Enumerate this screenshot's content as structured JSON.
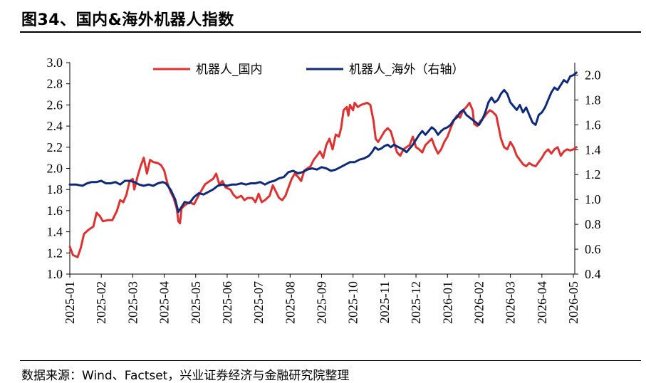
{
  "title": "图34、国内&海外机器人指数",
  "source": "数据来源：Wind、Factset，兴业证券经济与金融研究院整理",
  "chart_data": {
    "type": "line",
    "x_ticks": [
      "2025-01",
      "2025-02",
      "2025-03",
      "2025-04",
      "2025-05",
      "2025-06",
      "2025-07",
      "2025-08",
      "2025-09",
      "2025-10",
      "2025-11",
      "2025-12",
      "2026-01",
      "2026-02",
      "2026-03",
      "2026-04",
      "2026-05"
    ],
    "y_left": {
      "range": [
        1.0,
        3.0
      ],
      "ticks": [
        "1.0",
        "1.2",
        "1.4",
        "1.6",
        "1.8",
        "2.0",
        "2.2",
        "2.4",
        "2.6",
        "2.8",
        "3.0"
      ]
    },
    "y_right": {
      "range": [
        0.4,
        2.1
      ],
      "ticks": [
        "0.4",
        "0.6",
        "0.8",
        "1.0",
        "1.2",
        "1.4",
        "1.6",
        "1.8",
        "2.0"
      ]
    },
    "legend_position": "top",
    "series": [
      {
        "name": "机器人_国内",
        "axis": "left",
        "color": "#e03030",
        "points": [
          [
            0.0,
            1.26
          ],
          [
            0.1,
            1.18
          ],
          [
            0.25,
            1.16
          ],
          [
            0.35,
            1.25
          ],
          [
            0.45,
            1.38
          ],
          [
            0.6,
            1.42
          ],
          [
            0.75,
            1.45
          ],
          [
            0.85,
            1.58
          ],
          [
            0.95,
            1.55
          ],
          [
            1.05,
            1.5
          ],
          [
            1.2,
            1.51
          ],
          [
            1.35,
            1.51
          ],
          [
            1.5,
            1.6
          ],
          [
            1.6,
            1.7
          ],
          [
            1.7,
            1.68
          ],
          [
            1.8,
            1.75
          ],
          [
            1.9,
            1.88
          ],
          [
            2.0,
            1.9
          ],
          [
            2.05,
            1.8
          ],
          [
            2.15,
            1.92
          ],
          [
            2.25,
            2.02
          ],
          [
            2.35,
            2.1
          ],
          [
            2.45,
            1.95
          ],
          [
            2.55,
            2.08
          ],
          [
            2.65,
            2.06
          ],
          [
            2.8,
            2.05
          ],
          [
            2.9,
            2.03
          ],
          [
            3.0,
            1.98
          ],
          [
            3.1,
            1.86
          ],
          [
            3.2,
            1.78
          ],
          [
            3.3,
            1.72
          ],
          [
            3.4,
            1.62
          ],
          [
            3.45,
            1.5
          ],
          [
            3.5,
            1.48
          ],
          [
            3.55,
            1.62
          ],
          [
            3.65,
            1.65
          ],
          [
            3.8,
            1.68
          ],
          [
            3.95,
            1.66
          ],
          [
            4.05,
            1.72
          ],
          [
            4.2,
            1.8
          ],
          [
            4.3,
            1.85
          ],
          [
            4.45,
            1.88
          ],
          [
            4.55,
            1.9
          ],
          [
            4.65,
            1.95
          ],
          [
            4.75,
            1.85
          ],
          [
            4.85,
            1.88
          ],
          [
            4.95,
            1.82
          ],
          [
            5.1,
            1.8
          ],
          [
            5.2,
            1.75
          ],
          [
            5.3,
            1.72
          ],
          [
            5.45,
            1.74
          ],
          [
            5.55,
            1.7
          ],
          [
            5.65,
            1.72
          ],
          [
            5.8,
            1.72
          ],
          [
            5.9,
            1.68
          ],
          [
            6.0,
            1.76
          ],
          [
            6.1,
            1.68
          ],
          [
            6.2,
            1.7
          ],
          [
            6.35,
            1.74
          ],
          [
            6.45,
            1.84
          ],
          [
            6.55,
            1.78
          ],
          [
            6.65,
            1.72
          ],
          [
            6.75,
            1.7
          ],
          [
            6.85,
            1.74
          ],
          [
            6.95,
            1.82
          ],
          [
            7.05,
            1.9
          ],
          [
            7.15,
            1.95
          ],
          [
            7.25,
            1.92
          ],
          [
            7.35,
            1.88
          ],
          [
            7.45,
            1.98
          ],
          [
            7.55,
            2.0
          ],
          [
            7.65,
            2.02
          ],
          [
            7.75,
            2.08
          ],
          [
            7.85,
            2.12
          ],
          [
            7.95,
            2.16
          ],
          [
            8.05,
            2.1
          ],
          [
            8.15,
            2.22
          ],
          [
            8.25,
            2.28
          ],
          [
            8.35,
            2.18
          ],
          [
            8.45,
            2.32
          ],
          [
            8.55,
            2.3
          ],
          [
            8.62,
            2.38
          ],
          [
            8.7,
            2.55
          ],
          [
            8.8,
            2.58
          ],
          [
            8.85,
            2.5
          ],
          [
            8.9,
            2.6
          ],
          [
            9.0,
            2.55
          ],
          [
            9.05,
            2.62
          ],
          [
            9.15,
            2.58
          ],
          [
            9.25,
            2.6
          ],
          [
            9.35,
            2.61
          ],
          [
            9.45,
            2.62
          ],
          [
            9.55,
            2.6
          ],
          [
            9.65,
            2.45
          ],
          [
            9.72,
            2.28
          ],
          [
            9.8,
            2.25
          ],
          [
            9.9,
            2.3
          ],
          [
            10.0,
            2.35
          ],
          [
            10.1,
            2.38
          ],
          [
            10.2,
            2.35
          ],
          [
            10.3,
            2.25
          ],
          [
            10.4,
            2.15
          ],
          [
            10.5,
            2.12
          ],
          [
            10.6,
            2.18
          ],
          [
            10.7,
            2.2
          ],
          [
            10.8,
            2.22
          ],
          [
            10.9,
            2.3
          ],
          [
            11.0,
            2.2
          ],
          [
            11.1,
            2.18
          ],
          [
            11.2,
            2.15
          ],
          [
            11.3,
            2.22
          ],
          [
            11.4,
            2.25
          ],
          [
            11.5,
            2.28
          ],
          [
            11.6,
            2.2
          ],
          [
            11.7,
            2.14
          ],
          [
            11.8,
            2.18
          ],
          [
            11.9,
            2.25
          ],
          [
            12.0,
            2.3
          ],
          [
            12.1,
            2.38
          ],
          [
            12.2,
            2.45
          ],
          [
            12.3,
            2.5
          ],
          [
            12.4,
            2.48
          ],
          [
            12.5,
            2.55
          ],
          [
            12.6,
            2.58
          ],
          [
            12.7,
            2.62
          ],
          [
            12.8,
            2.55
          ],
          [
            12.85,
            2.42
          ],
          [
            12.95,
            2.4
          ],
          [
            13.05,
            2.45
          ],
          [
            13.15,
            2.48
          ],
          [
            13.25,
            2.52
          ],
          [
            13.35,
            2.55
          ],
          [
            13.45,
            2.53
          ],
          [
            13.55,
            2.5
          ],
          [
            13.62,
            2.4
          ],
          [
            13.7,
            2.28
          ],
          [
            13.8,
            2.2
          ],
          [
            13.9,
            2.18
          ],
          [
            14.0,
            2.25
          ],
          [
            14.1,
            2.2
          ],
          [
            14.2,
            2.12
          ],
          [
            14.3,
            2.08
          ],
          [
            14.4,
            2.04
          ],
          [
            14.5,
            2.02
          ],
          [
            14.6,
            2.05
          ],
          [
            14.7,
            2.03
          ],
          [
            14.8,
            2.02
          ],
          [
            14.9,
            2.06
          ],
          [
            15.0,
            2.1
          ],
          [
            15.1,
            2.15
          ],
          [
            15.2,
            2.18
          ],
          [
            15.3,
            2.14
          ],
          [
            15.4,
            2.18
          ],
          [
            15.5,
            2.2
          ],
          [
            15.6,
            2.12
          ],
          [
            15.7,
            2.16
          ],
          [
            15.8,
            2.18
          ],
          [
            15.9,
            2.17
          ],
          [
            16.0,
            2.18
          ],
          [
            16.1,
            2.2
          ]
        ]
      },
      {
        "name": "机器人_海外（右轴）",
        "axis": "right",
        "color": "#0d2b7a",
        "points": [
          [
            0.0,
            1.12
          ],
          [
            0.2,
            1.12
          ],
          [
            0.4,
            1.11
          ],
          [
            0.55,
            1.13
          ],
          [
            0.7,
            1.14
          ],
          [
            0.85,
            1.14
          ],
          [
            1.0,
            1.15
          ],
          [
            1.15,
            1.13
          ],
          [
            1.3,
            1.13
          ],
          [
            1.45,
            1.14
          ],
          [
            1.6,
            1.12
          ],
          [
            1.75,
            1.15
          ],
          [
            1.9,
            1.15
          ],
          [
            2.05,
            1.14
          ],
          [
            2.2,
            1.12
          ],
          [
            2.35,
            1.11
          ],
          [
            2.5,
            1.12
          ],
          [
            2.65,
            1.11
          ],
          [
            2.8,
            1.13
          ],
          [
            2.95,
            1.14
          ],
          [
            3.05,
            1.13
          ],
          [
            3.2,
            1.08
          ],
          [
            3.35,
            1.0
          ],
          [
            3.45,
            0.9
          ],
          [
            3.55,
            0.94
          ],
          [
            3.65,
            0.98
          ],
          [
            3.8,
            0.97
          ],
          [
            3.95,
            1.02
          ],
          [
            4.1,
            1.05
          ],
          [
            4.25,
            1.04
          ],
          [
            4.4,
            1.06
          ],
          [
            4.55,
            1.08
          ],
          [
            4.7,
            1.11
          ],
          [
            4.85,
            1.12
          ],
          [
            5.0,
            1.11
          ],
          [
            5.15,
            1.12
          ],
          [
            5.3,
            1.12
          ],
          [
            5.45,
            1.13
          ],
          [
            5.6,
            1.12
          ],
          [
            5.75,
            1.13
          ],
          [
            5.9,
            1.13
          ],
          [
            6.05,
            1.14
          ],
          [
            6.2,
            1.12
          ],
          [
            6.35,
            1.14
          ],
          [
            6.5,
            1.15
          ],
          [
            6.65,
            1.17
          ],
          [
            6.8,
            1.18
          ],
          [
            6.95,
            1.22
          ],
          [
            7.1,
            1.23
          ],
          [
            7.25,
            1.21
          ],
          [
            7.4,
            1.22
          ],
          [
            7.55,
            1.24
          ],
          [
            7.7,
            1.25
          ],
          [
            7.85,
            1.24
          ],
          [
            8.0,
            1.26
          ],
          [
            8.15,
            1.25
          ],
          [
            8.3,
            1.23
          ],
          [
            8.45,
            1.24
          ],
          [
            8.6,
            1.26
          ],
          [
            8.75,
            1.28
          ],
          [
            8.9,
            1.3
          ],
          [
            9.05,
            1.3
          ],
          [
            9.2,
            1.32
          ],
          [
            9.35,
            1.33
          ],
          [
            9.5,
            1.35
          ],
          [
            9.6,
            1.38
          ],
          [
            9.7,
            1.42
          ],
          [
            9.8,
            1.4
          ],
          [
            9.9,
            1.41
          ],
          [
            10.0,
            1.43
          ],
          [
            10.1,
            1.44
          ],
          [
            10.2,
            1.42
          ],
          [
            10.3,
            1.44
          ],
          [
            10.45,
            1.42
          ],
          [
            10.6,
            1.4
          ],
          [
            10.7,
            1.38
          ],
          [
            10.8,
            1.41
          ],
          [
            10.9,
            1.44
          ],
          [
            11.0,
            1.48
          ],
          [
            11.1,
            1.52
          ],
          [
            11.2,
            1.55
          ],
          [
            11.3,
            1.52
          ],
          [
            11.4,
            1.55
          ],
          [
            11.5,
            1.58
          ],
          [
            11.6,
            1.56
          ],
          [
            11.7,
            1.52
          ],
          [
            11.8,
            1.55
          ],
          [
            11.9,
            1.57
          ],
          [
            12.0,
            1.58
          ],
          [
            12.1,
            1.6
          ],
          [
            12.2,
            1.64
          ],
          [
            12.3,
            1.66
          ],
          [
            12.4,
            1.7
          ],
          [
            12.5,
            1.72
          ],
          [
            12.6,
            1.68
          ],
          [
            12.7,
            1.66
          ],
          [
            12.8,
            1.64
          ],
          [
            12.9,
            1.62
          ],
          [
            13.0,
            1.6
          ],
          [
            13.1,
            1.64
          ],
          [
            13.2,
            1.7
          ],
          [
            13.3,
            1.78
          ],
          [
            13.4,
            1.82
          ],
          [
            13.5,
            1.78
          ],
          [
            13.6,
            1.8
          ],
          [
            13.7,
            1.85
          ],
          [
            13.8,
            1.88
          ],
          [
            13.9,
            1.85
          ],
          [
            14.0,
            1.78
          ],
          [
            14.1,
            1.75
          ],
          [
            14.2,
            1.72
          ],
          [
            14.3,
            1.76
          ],
          [
            14.4,
            1.7
          ],
          [
            14.5,
            1.74
          ],
          [
            14.6,
            1.68
          ],
          [
            14.7,
            1.62
          ],
          [
            14.8,
            1.6
          ],
          [
            14.9,
            1.68
          ],
          [
            15.0,
            1.7
          ],
          [
            15.1,
            1.74
          ],
          [
            15.2,
            1.8
          ],
          [
            15.3,
            1.86
          ],
          [
            15.4,
            1.9
          ],
          [
            15.5,
            1.88
          ],
          [
            15.6,
            1.92
          ],
          [
            15.7,
            1.96
          ],
          [
            15.8,
            1.94
          ],
          [
            15.9,
            1.99
          ],
          [
            16.0,
            2.0
          ],
          [
            16.1,
            2.02
          ]
        ]
      }
    ]
  }
}
